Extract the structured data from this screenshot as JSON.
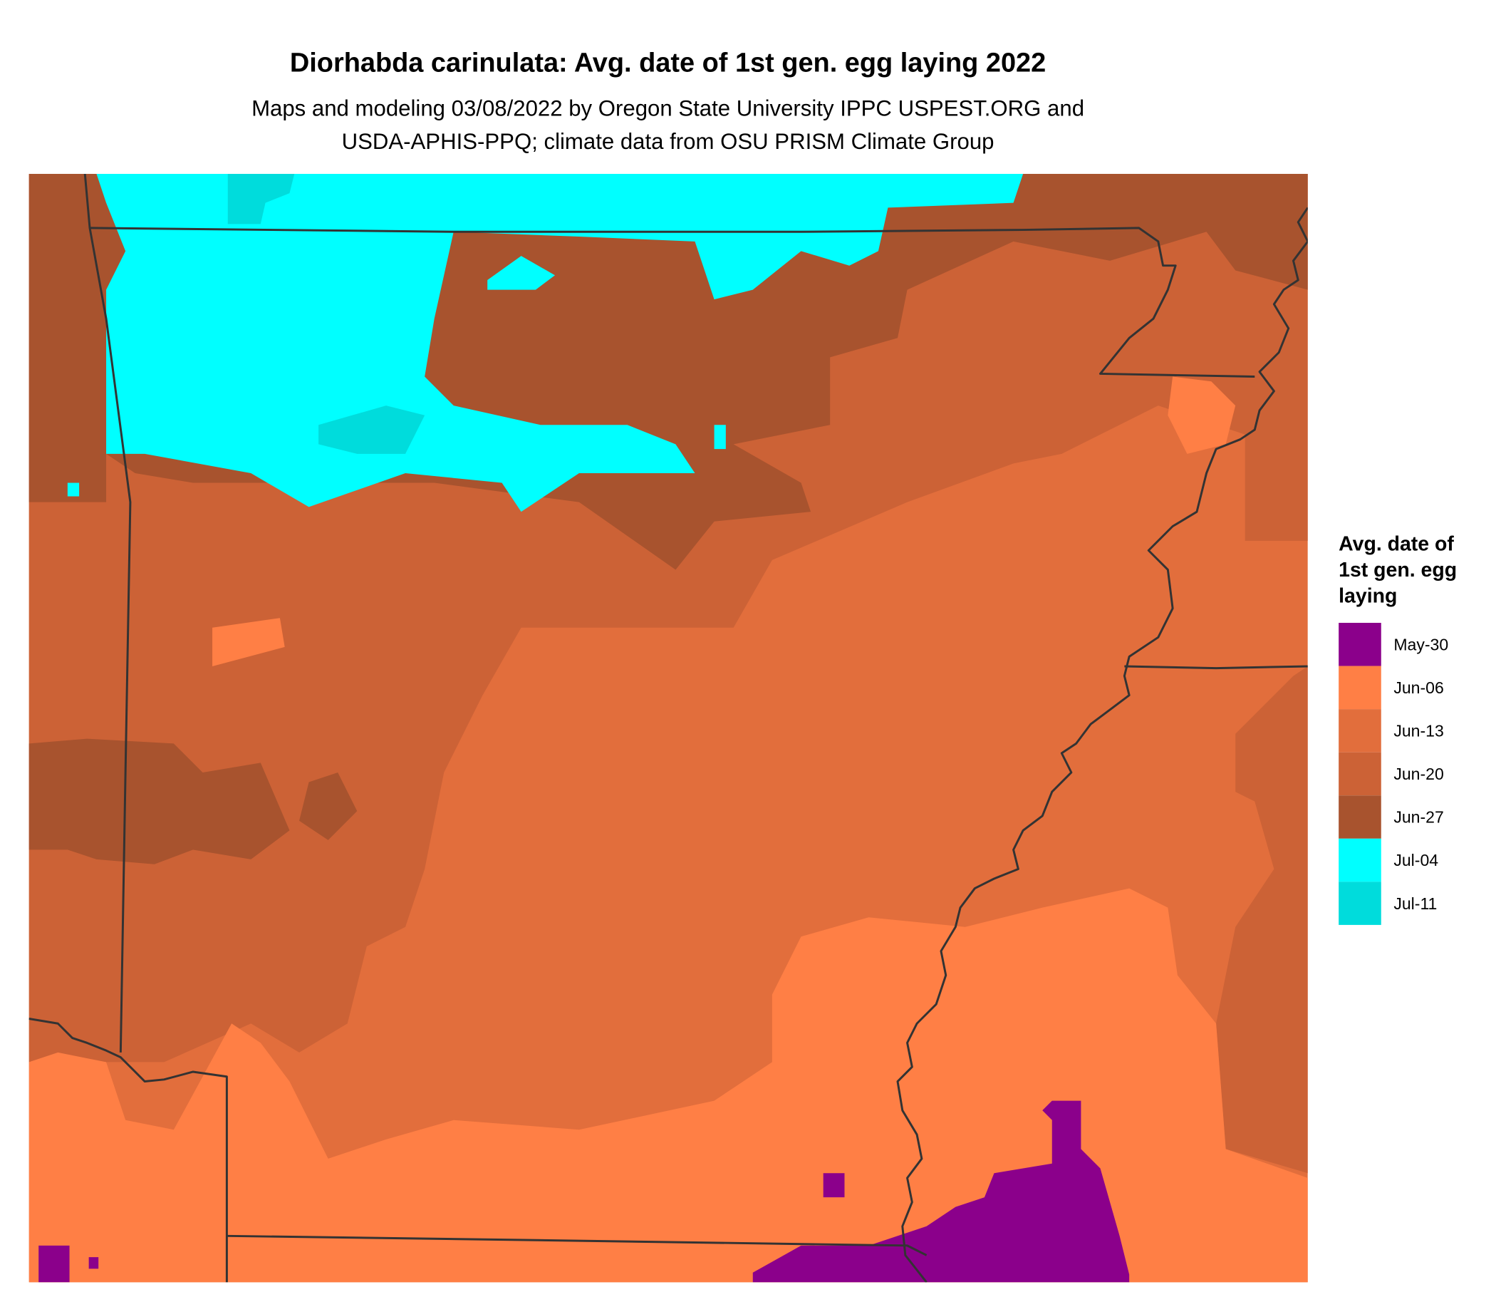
{
  "header": {
    "title": "Diorhabda carinulata: Avg. date of 1st gen. egg laying 2022",
    "subtitle": [
      "Maps and modeling 03/08/2022 by Oregon State University IPPC USPEST.ORG and",
      "USDA-APHIS-PPQ; climate data from OSU PRISM Climate Group"
    ]
  },
  "legend": {
    "title": [
      "Avg. date of",
      "1st gen. egg",
      "laying"
    ],
    "items": [
      {
        "label": "May-30",
        "color": "#8b008b"
      },
      {
        "label": "Jun-06",
        "color": "#ff7f45"
      },
      {
        "label": "Jun-13",
        "color": "#e26e3c"
      },
      {
        "label": "Jun-20",
        "color": "#cc6236"
      },
      {
        "label": "Jun-27",
        "color": "#a8532e"
      },
      {
        "label": "Jul-04",
        "color": "#00ffff"
      },
      {
        "label": "Jul-11",
        "color": "#00dcdc"
      }
    ]
  }
}
